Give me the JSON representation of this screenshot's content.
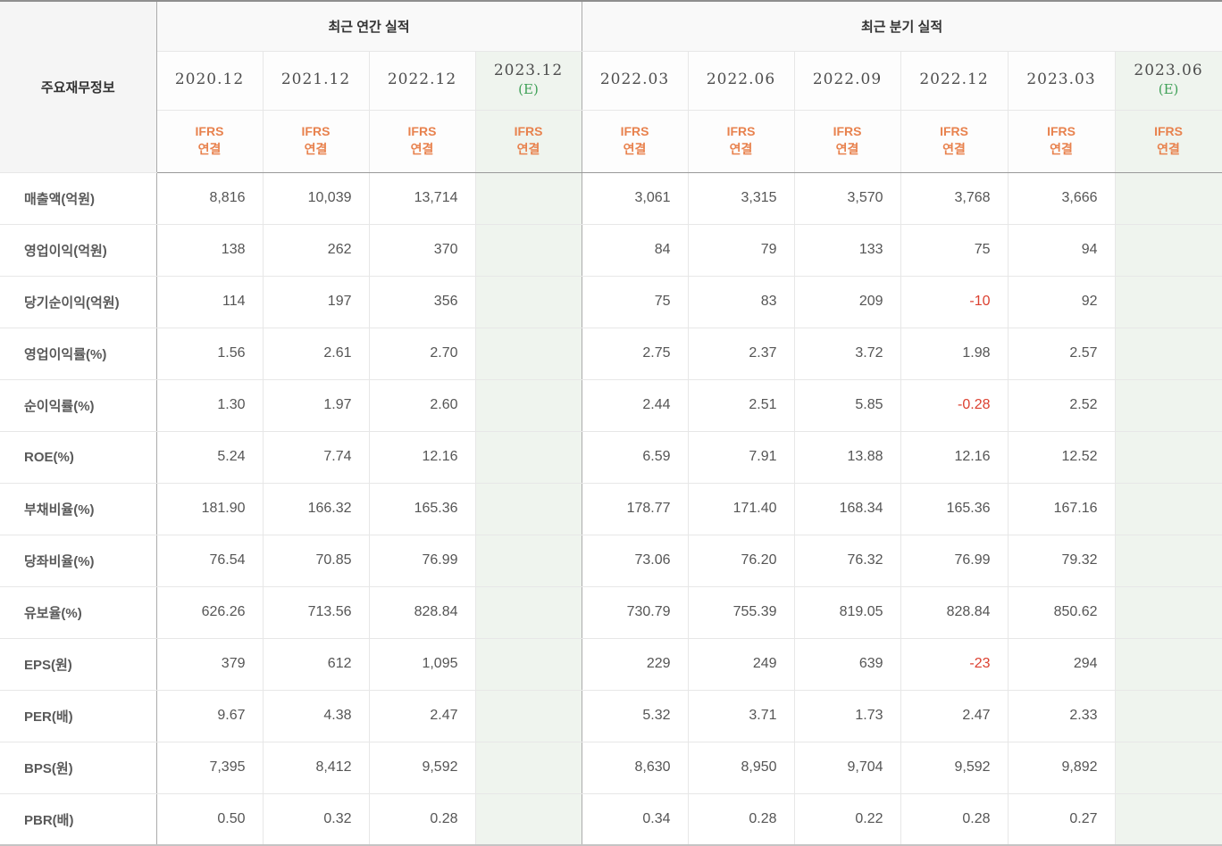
{
  "table": {
    "corner_label": "주요재무정보",
    "groups": [
      {
        "label": "최근 연간 실적",
        "colspan": 4
      },
      {
        "label": "최근 분기 실적",
        "colspan": 6
      }
    ],
    "estimate_label": "(E)",
    "ifrs_line1": "IFRS",
    "ifrs_line2": "연결",
    "columns": [
      {
        "date": "2020.12",
        "estimate": false,
        "group": "annual"
      },
      {
        "date": "2021.12",
        "estimate": false,
        "group": "annual"
      },
      {
        "date": "2022.12",
        "estimate": false,
        "group": "annual"
      },
      {
        "date": "2023.12",
        "estimate": true,
        "group": "annual"
      },
      {
        "date": "2022.03",
        "estimate": false,
        "group": "quarterly"
      },
      {
        "date": "2022.06",
        "estimate": false,
        "group": "quarterly"
      },
      {
        "date": "2022.09",
        "estimate": false,
        "group": "quarterly"
      },
      {
        "date": "2022.12",
        "estimate": false,
        "group": "quarterly"
      },
      {
        "date": "2023.03",
        "estimate": false,
        "group": "quarterly"
      },
      {
        "date": "2023.06",
        "estimate": true,
        "group": "quarterly"
      }
    ],
    "rows": [
      {
        "label": "매출액(억원)",
        "values": [
          "8,816",
          "10,039",
          "13,714",
          "",
          "3,061",
          "3,315",
          "3,570",
          "3,768",
          "3,666",
          ""
        ]
      },
      {
        "label": "영업이익(억원)",
        "values": [
          "138",
          "262",
          "370",
          "",
          "84",
          "79",
          "133",
          "75",
          "94",
          ""
        ]
      },
      {
        "label": "당기순이익(억원)",
        "values": [
          "114",
          "197",
          "356",
          "",
          "75",
          "83",
          "209",
          "-10",
          "92",
          ""
        ]
      },
      {
        "label": "영업이익률(%)",
        "values": [
          "1.56",
          "2.61",
          "2.70",
          "",
          "2.75",
          "2.37",
          "3.72",
          "1.98",
          "2.57",
          ""
        ]
      },
      {
        "label": "순이익률(%)",
        "values": [
          "1.30",
          "1.97",
          "2.60",
          "",
          "2.44",
          "2.51",
          "5.85",
          "-0.28",
          "2.52",
          ""
        ]
      },
      {
        "label": "ROE(%)",
        "values": [
          "5.24",
          "7.74",
          "12.16",
          "",
          "6.59",
          "7.91",
          "13.88",
          "12.16",
          "12.52",
          ""
        ]
      },
      {
        "label": "부채비율(%)",
        "values": [
          "181.90",
          "166.32",
          "165.36",
          "",
          "178.77",
          "171.40",
          "168.34",
          "165.36",
          "167.16",
          ""
        ]
      },
      {
        "label": "당좌비율(%)",
        "values": [
          "76.54",
          "70.85",
          "76.99",
          "",
          "73.06",
          "76.20",
          "76.32",
          "76.99",
          "79.32",
          ""
        ]
      },
      {
        "label": "유보율(%)",
        "values": [
          "626.26",
          "713.56",
          "828.84",
          "",
          "730.79",
          "755.39",
          "819.05",
          "828.84",
          "850.62",
          ""
        ]
      },
      {
        "label": "EPS(원)",
        "values": [
          "379",
          "612",
          "1,095",
          "",
          "229",
          "249",
          "639",
          "-23",
          "294",
          ""
        ]
      },
      {
        "label": "PER(배)",
        "values": [
          "9.67",
          "4.38",
          "2.47",
          "",
          "5.32",
          "3.71",
          "1.73",
          "2.47",
          "2.33",
          ""
        ]
      },
      {
        "label": "BPS(원)",
        "values": [
          "7,395",
          "8,412",
          "9,592",
          "",
          "8,630",
          "8,950",
          "9,704",
          "9,592",
          "9,892",
          ""
        ]
      },
      {
        "label": "PBR(배)",
        "values": [
          "0.50",
          "0.32",
          "0.28",
          "",
          "0.34",
          "0.28",
          "0.22",
          "0.28",
          "0.27",
          ""
        ]
      }
    ]
  },
  "colors": {
    "ifrs_orange": "#e8824e",
    "estimate_green": "#3fa057",
    "negative_red": "#dc4030",
    "estimate_column_bg": "#eff4ee",
    "section_divider": "#ababab",
    "header_separator": "#999999"
  }
}
